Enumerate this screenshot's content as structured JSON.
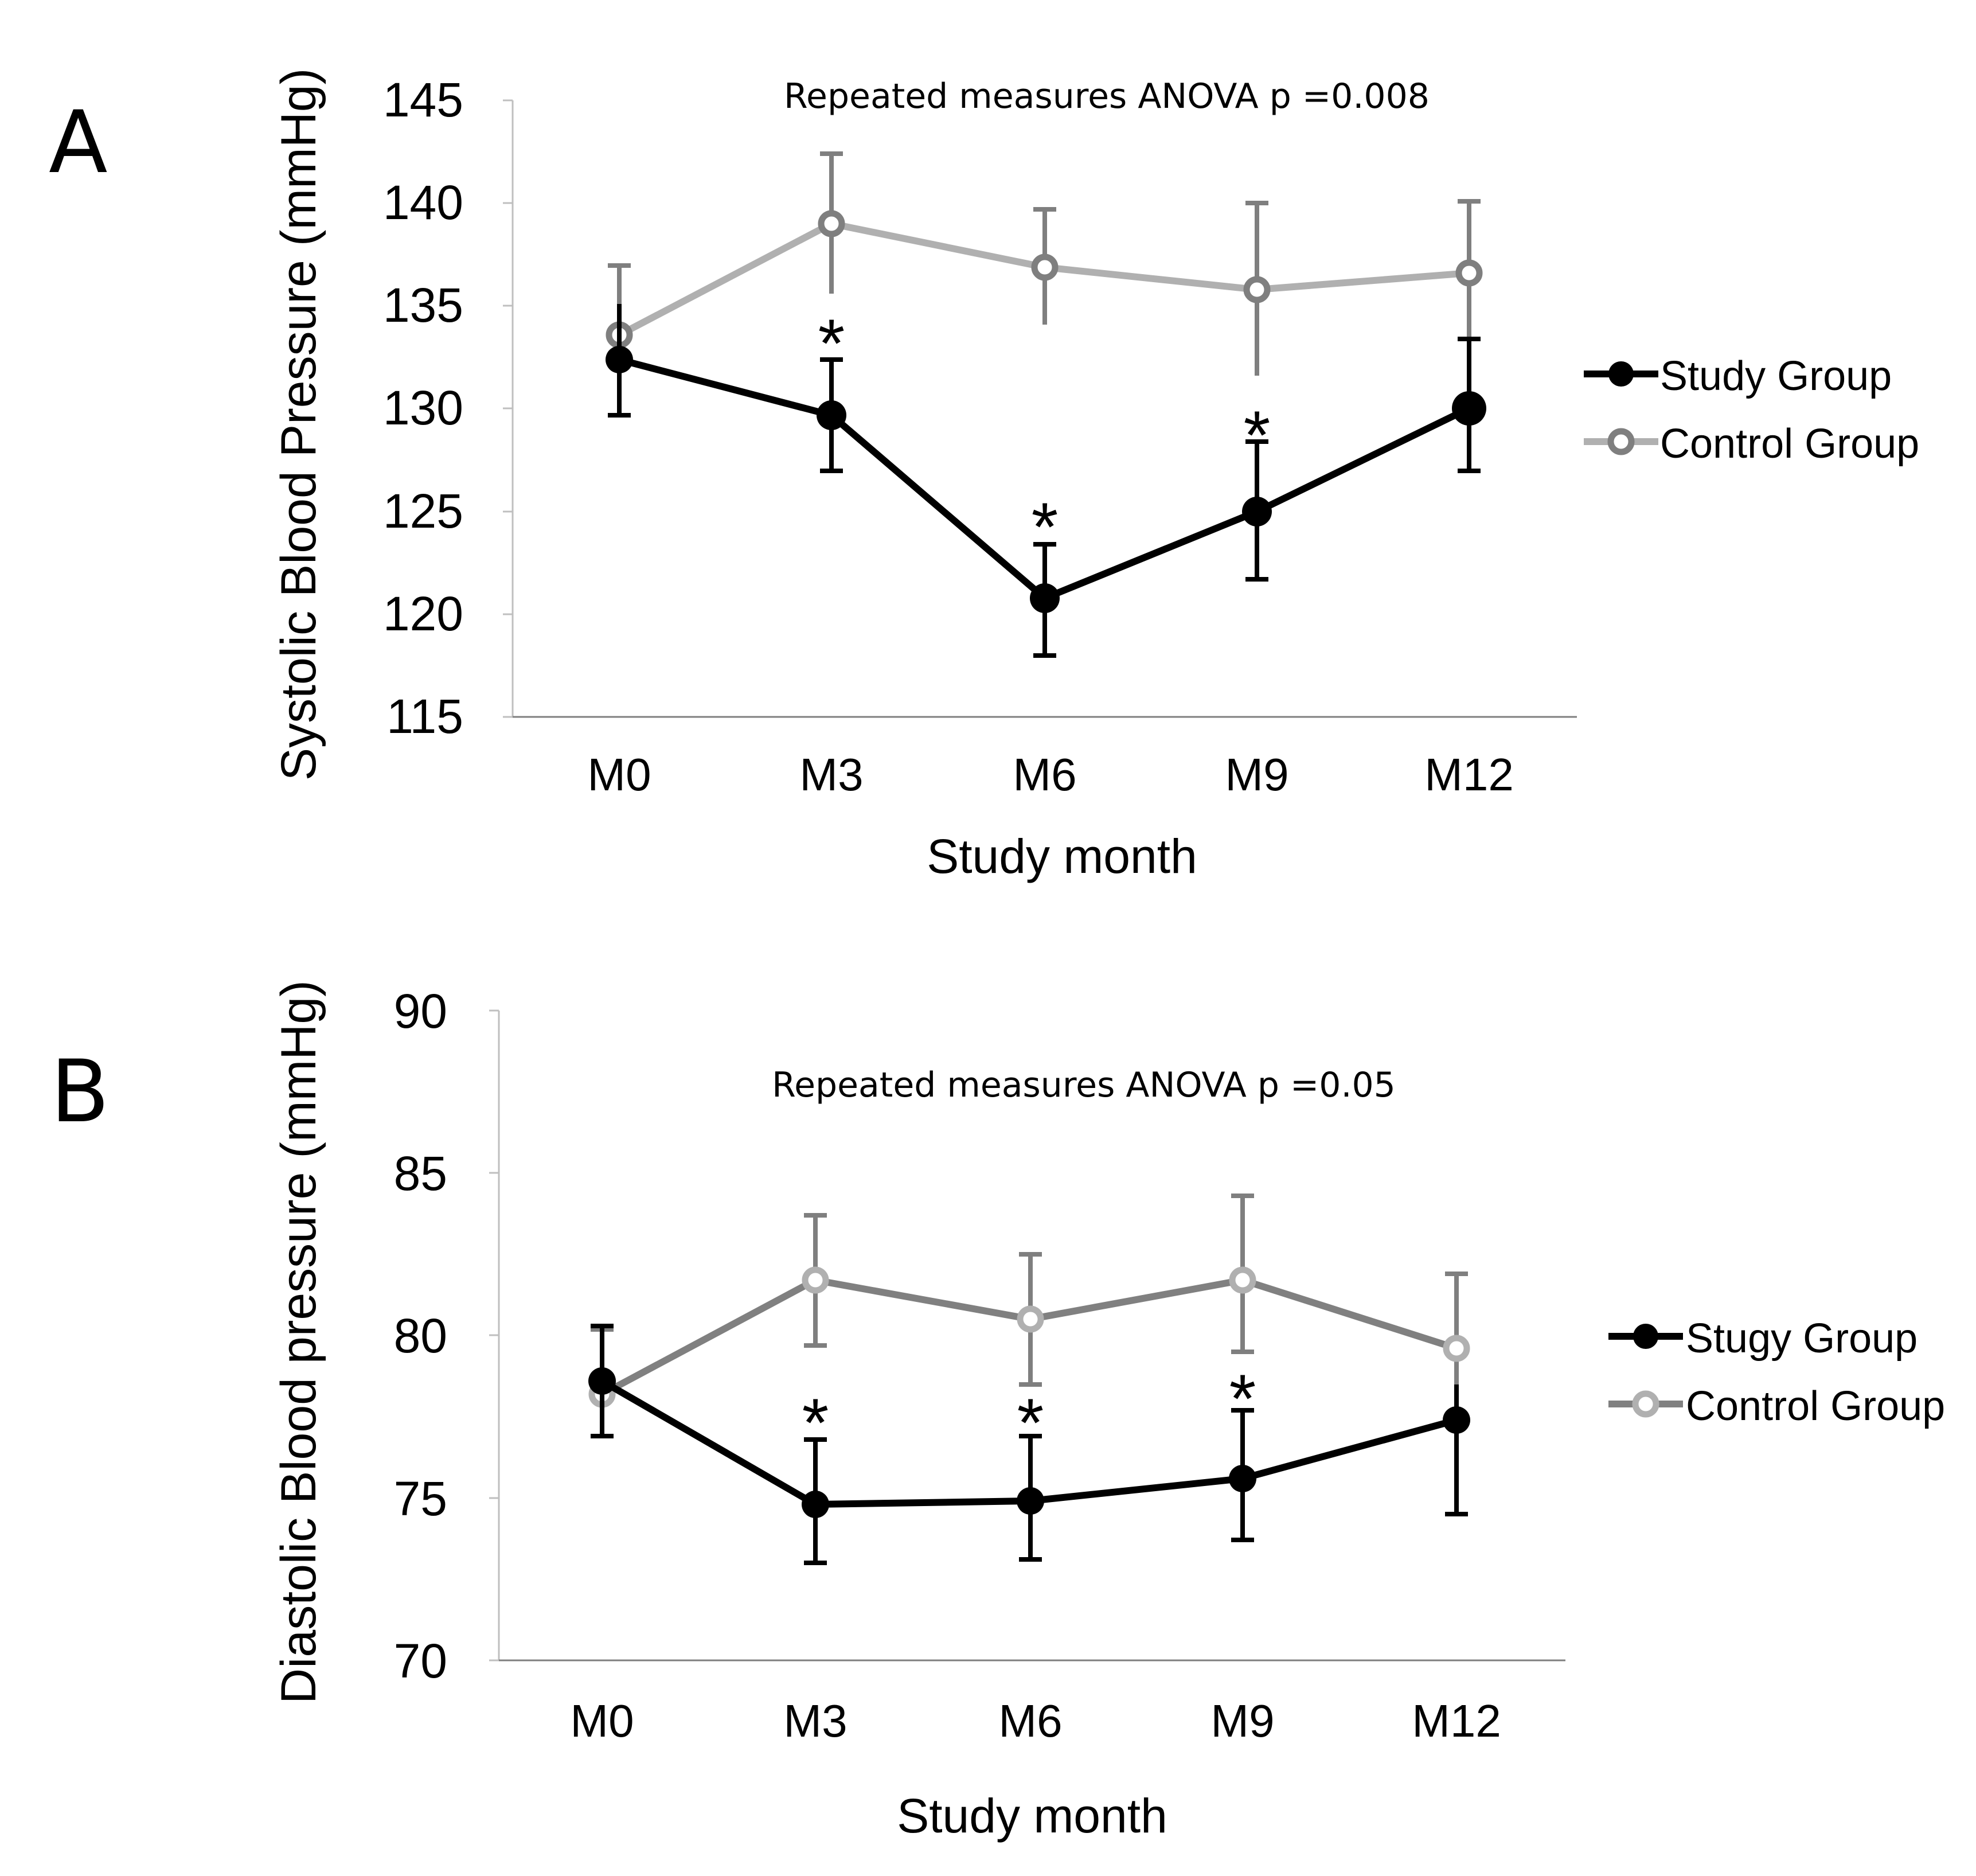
{
  "chart_data": [
    {
      "panel_label": "A",
      "type": "line",
      "annotation": "Repeated measures ANOVA p =0.008",
      "ylabel": "Systolic Blood Pressure (mmHg)",
      "xlabel": "Study month",
      "categories": [
        "M0",
        "M3",
        "M6",
        "M9",
        "M12"
      ],
      "ylim": [
        115,
        145
      ],
      "yticks": [
        115,
        120,
        125,
        130,
        135,
        140,
        145
      ],
      "ytick_labels": [
        "115",
        "120",
        "125",
        "130",
        "135",
        "140",
        "145"
      ],
      "grid": false,
      "legend_position": "right",
      "series": [
        {
          "name": "Study Group",
          "marker": "filled",
          "color": "#000000",
          "values": [
            132.3,
            129.6,
            120.7,
            124.9,
            130.0
          ],
          "error_upper": [
            134.9,
            132.3,
            123.3,
            128.2,
            133.2
          ],
          "error_lower": [
            129.6,
            126.9,
            118.0,
            121.6,
            126.8
          ]
        },
        {
          "name": "Control Group",
          "marker": "open",
          "color": "#b0b0b0",
          "error_color": "#7f7f7f",
          "values": [
            133.4,
            138.8,
            136.7,
            135.6,
            136.4
          ],
          "error_upper": [
            136.7,
            142.2,
            139.5,
            139.8,
            139.9
          ],
          "error_lower": [
            130.1,
            135.4,
            133.9,
            131.4,
            132.9
          ]
        }
      ],
      "significance_marker": "*",
      "significant_categories": [
        "M3",
        "M6",
        "M9"
      ]
    },
    {
      "panel_label": "B",
      "type": "line",
      "annotation": "Repeated measures ANOVA p =0.05",
      "ylabel": "Diastolic Blood pressure (mmHg)",
      "xlabel": "Study month",
      "categories": [
        "M0",
        "M3",
        "M6",
        "M9",
        "M12"
      ],
      "ylim": [
        70,
        90
      ],
      "yticks": [
        70,
        75,
        80,
        85,
        90
      ],
      "ytick_labels": [
        "70",
        "75",
        "80",
        "85",
        "90"
      ],
      "grid": false,
      "legend_position": "right",
      "series": [
        {
          "name": "Stugy Group",
          "marker": "filled",
          "color": "#000000",
          "values": [
            78.6,
            74.8,
            74.9,
            75.6,
            77.4
          ],
          "error_upper": [
            80.3,
            76.7,
            76.8,
            77.6,
            79.4
          ],
          "error_lower": [
            76.9,
            72.9,
            73.0,
            73.6,
            75.3
          ]
        },
        {
          "name": "Control Group",
          "marker": "open",
          "color": "#808080",
          "marker_color": "#b0b0b0",
          "error_color": "#7f7f7f",
          "values": [
            78.2,
            81.7,
            80.5,
            81.7,
            79.6
          ],
          "error_upper": [
            80.1,
            83.7,
            82.5,
            84.1,
            81.7
          ],
          "error_lower": [
            76.4,
            79.7,
            78.5,
            79.3,
            77.5
          ]
        }
      ],
      "significance_marker": "*",
      "significant_categories": [
        "M3",
        "M6",
        "M9"
      ]
    }
  ]
}
